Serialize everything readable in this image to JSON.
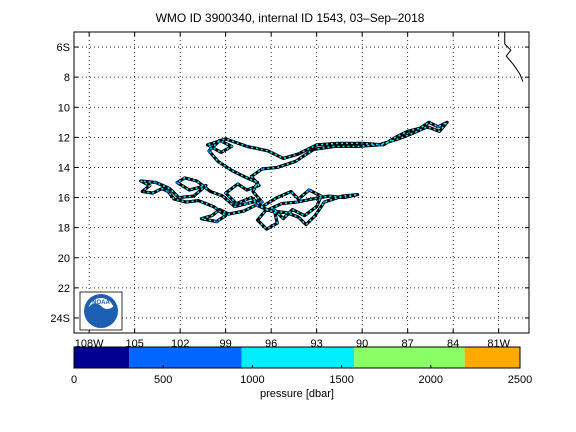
{
  "chart_data": {
    "type": "scatter",
    "title": "WMO ID 3900340, internal ID 1543, 03–Sep–2018",
    "xlabel": "",
    "ylabel": "",
    "xlim": [
      -109,
      -79
    ],
    "ylim": [
      -25,
      -5
    ],
    "grid": true,
    "x_ticks": [
      {
        "value": -108,
        "label": "108W"
      },
      {
        "value": -105,
        "label": "105"
      },
      {
        "value": -102,
        "label": "102"
      },
      {
        "value": -99,
        "label": "99"
      },
      {
        "value": -96,
        "label": "96"
      },
      {
        "value": -93,
        "label": "93"
      },
      {
        "value": -90,
        "label": "90"
      },
      {
        "value": -87,
        "label": "87"
      },
      {
        "value": -84,
        "label": "84"
      },
      {
        "value": -81,
        "label": "81W"
      }
    ],
    "y_ticks": [
      {
        "value": -6,
        "label": "6S"
      },
      {
        "value": -8,
        "label": "8"
      },
      {
        "value": -10,
        "label": "10"
      },
      {
        "value": -12,
        "label": "12"
      },
      {
        "value": -14,
        "label": "14"
      },
      {
        "value": -16,
        "label": "16"
      },
      {
        "value": -18,
        "label": "18"
      },
      {
        "value": -20,
        "label": "20"
      },
      {
        "value": -22,
        "label": "22"
      },
      {
        "value": -24,
        "label": "24S"
      }
    ],
    "coastline": [
      [
        -80.6,
        -5
      ],
      [
        -80.6,
        -5.8
      ],
      [
        -80.2,
        -6.2
      ],
      [
        -80.5,
        -6.6
      ],
      [
        -80.0,
        -7.2
      ],
      [
        -79.6,
        -7.8
      ],
      [
        -79.4,
        -8.3
      ]
    ],
    "trajectory": [
      [
        -96.6,
        -16.3
      ],
      [
        -97.2,
        -15.6
      ],
      [
        -96.9,
        -15.0
      ],
      [
        -97.8,
        -14.6
      ],
      [
        -98.6,
        -14.2
      ],
      [
        -99.5,
        -13.6
      ],
      [
        -100.1,
        -12.9
      ],
      [
        -99.4,
        -12.2
      ],
      [
        -98.6,
        -12.6
      ],
      [
        -99.3,
        -13.0
      ],
      [
        -100.2,
        -12.5
      ],
      [
        -99.0,
        -12.1
      ],
      [
        -97.6,
        -12.6
      ],
      [
        -96.2,
        -12.9
      ],
      [
        -95.2,
        -13.4
      ],
      [
        -94.2,
        -13.1
      ],
      [
        -93.0,
        -12.5
      ],
      [
        -91.6,
        -12.4
      ],
      [
        -90.0,
        -12.4
      ],
      [
        -88.6,
        -12.5
      ],
      [
        -87.8,
        -12.0
      ],
      [
        -87.0,
        -11.6
      ],
      [
        -86.2,
        -11.4
      ],
      [
        -85.6,
        -11.0
      ],
      [
        -85.0,
        -11.3
      ],
      [
        -84.4,
        -11.0
      ],
      [
        -84.9,
        -11.6
      ],
      [
        -85.7,
        -11.3
      ],
      [
        -86.6,
        -11.7
      ],
      [
        -87.6,
        -12.1
      ],
      [
        -88.9,
        -12.5
      ],
      [
        -90.3,
        -12.6
      ],
      [
        -91.8,
        -12.6
      ],
      [
        -93.2,
        -12.8
      ],
      [
        -94.4,
        -13.6
      ],
      [
        -95.6,
        -14.0
      ],
      [
        -96.6,
        -14.1
      ],
      [
        -97.3,
        -14.6
      ],
      [
        -96.8,
        -15.2
      ],
      [
        -97.6,
        -15.5
      ],
      [
        -98.2,
        -15.1
      ],
      [
        -99.0,
        -15.7
      ],
      [
        -98.3,
        -16.4
      ],
      [
        -97.3,
        -16.0
      ],
      [
        -96.6,
        -16.6
      ],
      [
        -95.6,
        -16.0
      ],
      [
        -94.7,
        -15.6
      ],
      [
        -94.2,
        -16.1
      ],
      [
        -93.5,
        -15.5
      ],
      [
        -92.7,
        -15.9
      ],
      [
        -93.0,
        -16.6
      ],
      [
        -93.8,
        -17.2
      ],
      [
        -94.6,
        -16.8
      ],
      [
        -95.2,
        -17.4
      ],
      [
        -95.8,
        -16.8
      ],
      [
        -95.6,
        -17.7
      ],
      [
        -96.3,
        -18.1
      ],
      [
        -96.9,
        -17.5
      ],
      [
        -96.4,
        -16.9
      ],
      [
        -95.3,
        -16.4
      ],
      [
        -94.3,
        -16.3
      ],
      [
        -93.3,
        -16.1
      ],
      [
        -92.2,
        -15.9
      ],
      [
        -91.2,
        -16.0
      ],
      [
        -90.3,
        -15.8
      ],
      [
        -91.3,
        -15.9
      ],
      [
        -92.5,
        -16.3
      ],
      [
        -93.1,
        -17.2
      ],
      [
        -93.7,
        -17.8
      ],
      [
        -94.2,
        -17.3
      ],
      [
        -95.0,
        -17.0
      ],
      [
        -96.0,
        -16.9
      ],
      [
        -97.0,
        -16.5
      ],
      [
        -97.8,
        -16.9
      ],
      [
        -98.8,
        -17.1
      ],
      [
        -99.4,
        -16.8
      ],
      [
        -99.9,
        -17.2
      ],
      [
        -100.6,
        -17.4
      ],
      [
        -99.6,
        -17.6
      ],
      [
        -99.0,
        -17.2
      ],
      [
        -99.8,
        -16.6
      ],
      [
        -100.8,
        -16.2
      ],
      [
        -101.6,
        -16.3
      ],
      [
        -102.4,
        -16.1
      ],
      [
        -102.8,
        -15.6
      ],
      [
        -103.2,
        -15.4
      ],
      [
        -103.8,
        -15.7
      ],
      [
        -104.5,
        -15.6
      ],
      [
        -104.0,
        -15.2
      ],
      [
        -104.6,
        -14.9
      ],
      [
        -103.6,
        -15.0
      ],
      [
        -102.7,
        -15.4
      ],
      [
        -102.1,
        -16.0
      ],
      [
        -101.1,
        -15.9
      ],
      [
        -100.3,
        -15.2
      ],
      [
        -101.4,
        -15.5
      ],
      [
        -102.2,
        -15.0
      ],
      [
        -101.7,
        -14.7
      ],
      [
        -100.9,
        -14.9
      ],
      [
        -100.0,
        -15.6
      ],
      [
        -99.2,
        -15.9
      ],
      [
        -98.4,
        -16.6
      ],
      [
        -97.6,
        -16.4
      ],
      [
        -96.8,
        -16.2
      ]
    ],
    "colorbar": {
      "label": "pressure [dbar]",
      "ticks": [
        0,
        500,
        1000,
        1500,
        2000,
        2500
      ],
      "ticklabels": [
        "0",
        "500",
        "1000",
        "1500",
        "2000",
        "2500"
      ],
      "range": [
        0,
        2500
      ],
      "bins": [
        {
          "from": 0,
          "to": 310,
          "color": "#00008f"
        },
        {
          "from": 310,
          "to": 940,
          "color": "#0066ff"
        },
        {
          "from": 940,
          "to": 1570,
          "color": "#00eeff"
        },
        {
          "from": 1570,
          "to": 2190,
          "color": "#88ff66"
        },
        {
          "from": 2190,
          "to": 2500,
          "color": "#ffaa00"
        }
      ]
    },
    "logo_text": "NOAA"
  }
}
